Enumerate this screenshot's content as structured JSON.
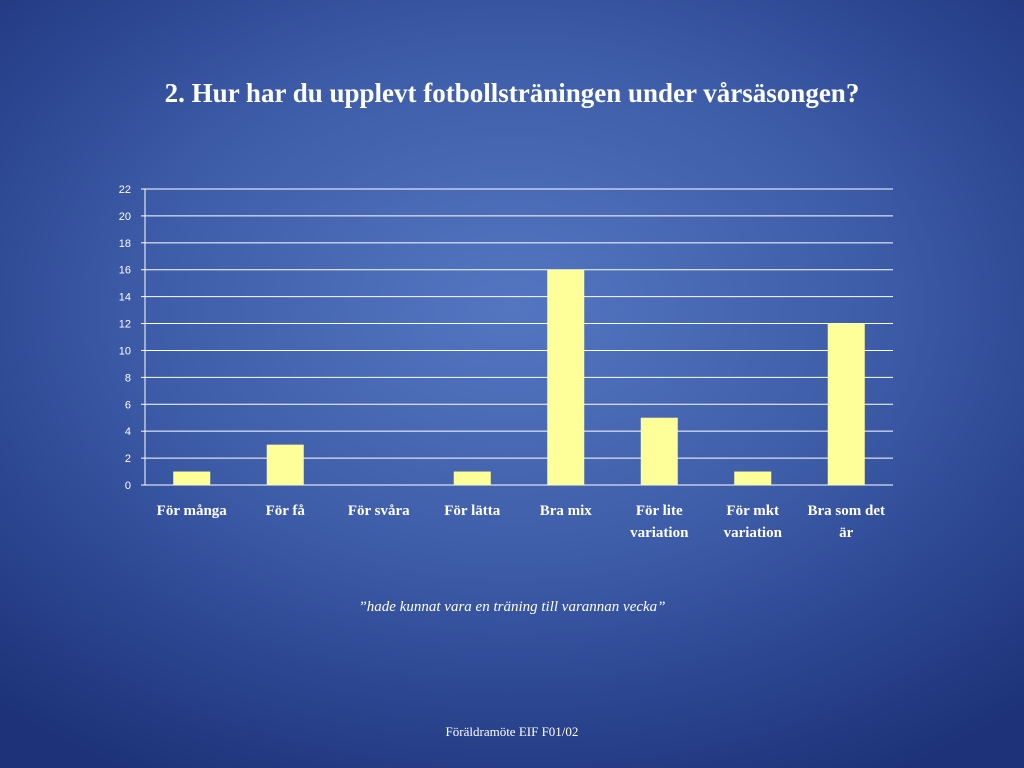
{
  "slide": {
    "title": "2. Hur har du upplevt fotbollsträningen under vårsäsongen?",
    "comment": "”hade kunnat vara en träning till varannan vecka”",
    "footer": "Föräldramöte EIF F01/02"
  },
  "colors": {
    "bar": "#ffff99",
    "grid": "#ffffff",
    "text": "#ffffff"
  },
  "chart_data": {
    "type": "bar",
    "categories": [
      [
        "För många"
      ],
      [
        "För få"
      ],
      [
        "För svåra"
      ],
      [
        "För lätta"
      ],
      [
        "Bra mix"
      ],
      [
        "För lite",
        "variation"
      ],
      [
        "För mkt",
        "variation"
      ],
      [
        "Bra som det",
        "är"
      ]
    ],
    "values": [
      1,
      3,
      0,
      1,
      16,
      5,
      1,
      12
    ],
    "ylim": [
      0,
      22
    ],
    "yticks": [
      0,
      2,
      4,
      6,
      8,
      10,
      12,
      14,
      16,
      18,
      20,
      22
    ],
    "grid": true,
    "legend": "none"
  }
}
